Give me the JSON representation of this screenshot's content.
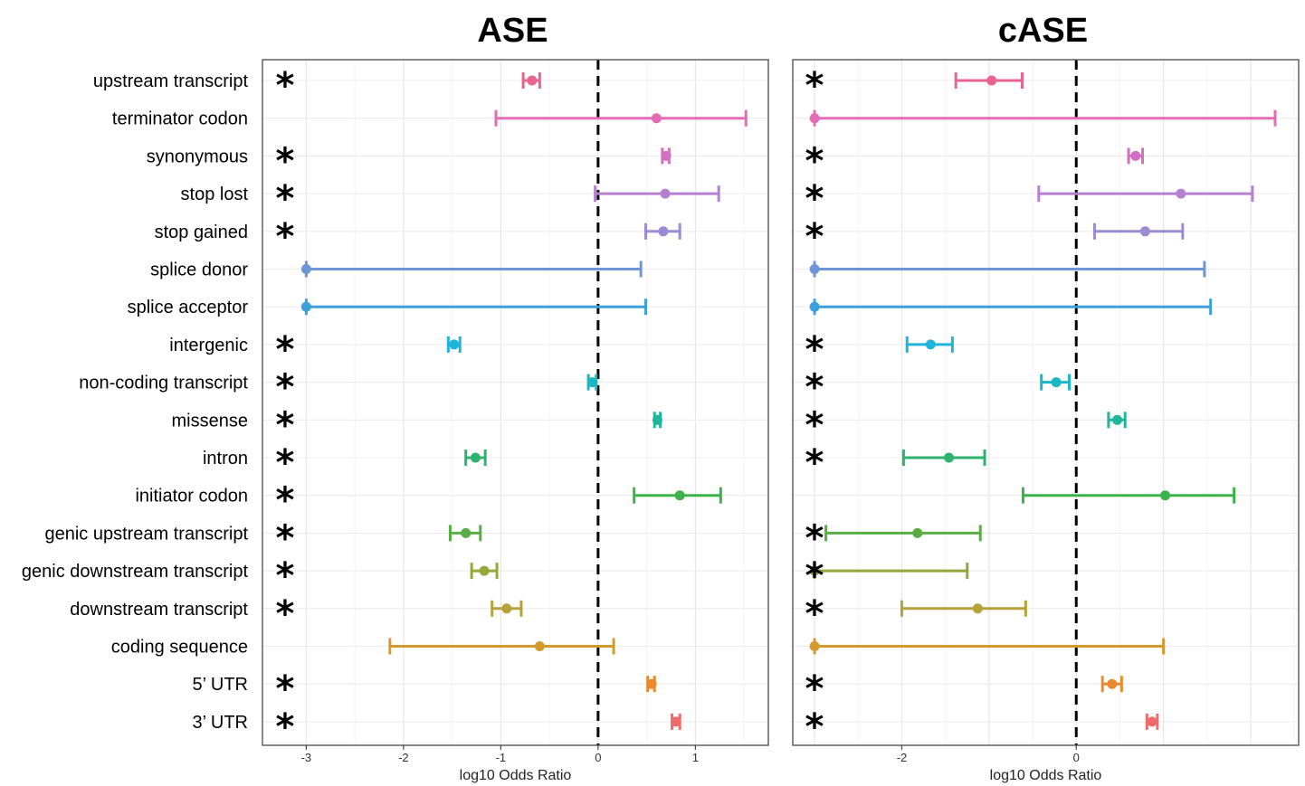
{
  "chart_data": [
    {
      "type": "forest",
      "title": "ASE",
      "xlabel": "log10 Odds Ratio",
      "xlim": [
        -3.45,
        1.75
      ],
      "xticks": [
        -3,
        -2,
        -1,
        0,
        1
      ],
      "xtick_labels": [
        "-3",
        "-2",
        "-1",
        "0",
        "1"
      ],
      "reference_line": 0,
      "grid": true,
      "rows": [
        {
          "category": "upstream transcript",
          "estimate": -0.68,
          "lower": -0.77,
          "upper": -0.6,
          "significant": true
        },
        {
          "category": "terminator codon",
          "estimate": 0.6,
          "lower": -1.05,
          "upper": 1.52,
          "significant": false
        },
        {
          "category": "synonymous",
          "estimate": 0.7,
          "lower": 0.66,
          "upper": 0.73,
          "significant": true
        },
        {
          "category": "stop lost",
          "estimate": 0.69,
          "lower": -0.03,
          "upper": 1.24,
          "significant": true
        },
        {
          "category": "stop gained",
          "estimate": 0.67,
          "lower": 0.49,
          "upper": 0.84,
          "significant": true
        },
        {
          "category": "splice donor",
          "estimate": -3.0,
          "lower": -3.0,
          "upper": 0.44,
          "significant": false
        },
        {
          "category": "splice acceptor",
          "estimate": -3.0,
          "lower": -3.0,
          "upper": 0.49,
          "significant": false
        },
        {
          "category": "intergenic",
          "estimate": -1.48,
          "lower": -1.54,
          "upper": -1.42,
          "significant": true
        },
        {
          "category": "non-coding transcript",
          "estimate": -0.06,
          "lower": -0.1,
          "upper": -0.02,
          "significant": true
        },
        {
          "category": "missense",
          "estimate": 0.61,
          "lower": 0.58,
          "upper": 0.64,
          "significant": true
        },
        {
          "category": "intron",
          "estimate": -1.26,
          "lower": -1.36,
          "upper": -1.16,
          "significant": true
        },
        {
          "category": "initiator codon",
          "estimate": 0.84,
          "lower": 0.37,
          "upper": 1.26,
          "significant": true
        },
        {
          "category": "genic upstream transcript",
          "estimate": -1.36,
          "lower": -1.52,
          "upper": -1.21,
          "significant": true
        },
        {
          "category": "genic downstream transcript",
          "estimate": -1.17,
          "lower": -1.3,
          "upper": -1.04,
          "significant": true
        },
        {
          "category": "downstream transcript",
          "estimate": -0.94,
          "lower": -1.09,
          "upper": -0.79,
          "significant": true
        },
        {
          "category": "coding sequence",
          "estimate": -0.6,
          "lower": -2.14,
          "upper": 0.16,
          "significant": false
        },
        {
          "category": "5’ UTR",
          "estimate": 0.55,
          "lower": 0.51,
          "upper": 0.58,
          "significant": true
        },
        {
          "category": "3’ UTR",
          "estimate": 0.8,
          "lower": 0.76,
          "upper": 0.84,
          "significant": true
        }
      ]
    },
    {
      "type": "forest",
      "title": "cASE",
      "xlabel": "log10 Odds Ratio",
      "xlim": [
        -3.25,
        2.55
      ],
      "xticks": [
        -2,
        0
      ],
      "xtick_labels": [
        "-2",
        "0"
      ],
      "reference_line": 0,
      "grid": true,
      "rows": [
        {
          "category": "upstream transcript",
          "estimate": -0.97,
          "lower": -1.38,
          "upper": -0.62,
          "significant": true
        },
        {
          "category": "terminator codon",
          "estimate": -3.0,
          "lower": -3.0,
          "upper": 2.28,
          "significant": false
        },
        {
          "category": "synonymous",
          "estimate": 0.68,
          "lower": 0.6,
          "upper": 0.76,
          "significant": true
        },
        {
          "category": "stop lost",
          "estimate": 1.2,
          "lower": -0.43,
          "upper": 2.02,
          "significant": true
        },
        {
          "category": "stop gained",
          "estimate": 0.79,
          "lower": 0.21,
          "upper": 1.22,
          "significant": true
        },
        {
          "category": "splice donor",
          "estimate": -3.0,
          "lower": -3.0,
          "upper": 1.47,
          "significant": false
        },
        {
          "category": "splice acceptor",
          "estimate": -3.0,
          "lower": -3.0,
          "upper": 1.54,
          "significant": false
        },
        {
          "category": "intergenic",
          "estimate": -1.67,
          "lower": -1.94,
          "upper": -1.42,
          "significant": true
        },
        {
          "category": "non-coding transcript",
          "estimate": -0.23,
          "lower": -0.4,
          "upper": -0.08,
          "significant": true
        },
        {
          "category": "missense",
          "estimate": 0.47,
          "lower": 0.37,
          "upper": 0.56,
          "significant": true
        },
        {
          "category": "intron",
          "estimate": -1.46,
          "lower": -1.98,
          "upper": -1.05,
          "significant": true
        },
        {
          "category": "initiator codon",
          "estimate": 1.02,
          "lower": -0.61,
          "upper": 1.81,
          "significant": false
        },
        {
          "category": "genic upstream transcript",
          "estimate": -1.82,
          "lower": -2.87,
          "upper": -1.1,
          "significant": true
        },
        {
          "category": "genic downstream transcript",
          "estimate": -3.0,
          "lower": -3.0,
          "upper": -1.25,
          "significant": true
        },
        {
          "category": "downstream transcript",
          "estimate": -1.13,
          "lower": -2.0,
          "upper": -0.58,
          "significant": true
        },
        {
          "category": "coding sequence",
          "estimate": -3.0,
          "lower": -3.0,
          "upper": 1.0,
          "significant": false
        },
        {
          "category": "5’ UTR",
          "estimate": 0.41,
          "lower": 0.3,
          "upper": 0.52,
          "significant": true
        },
        {
          "category": "3’ UTR",
          "estimate": 0.87,
          "lower": 0.81,
          "upper": 0.93,
          "significant": true
        }
      ]
    }
  ],
  "significance_marker": "*",
  "colors": {
    "upstream transcript": "#e8638d",
    "terminator codon": "#e56bb6",
    "synonymous": "#d36fc2",
    "stop lost": "#b680cf",
    "stop gained": "#9a8bd2",
    "splice donor": "#6e95d6",
    "splice acceptor": "#3d9fdc",
    "intergenic": "#1fb4d9",
    "non-coding transcript": "#1ab8c4",
    "missense": "#1fb79c",
    "intron": "#2db36f",
    "initiator codon": "#3cb34a",
    "genic upstream transcript": "#58ae42",
    "genic downstream transcript": "#95a73a",
    "downstream transcript": "#b5a33a",
    "coding sequence": "#d49a2e",
    "5’ UTR": "#ea8a2f",
    "3’ UTR": "#f06a6a"
  }
}
